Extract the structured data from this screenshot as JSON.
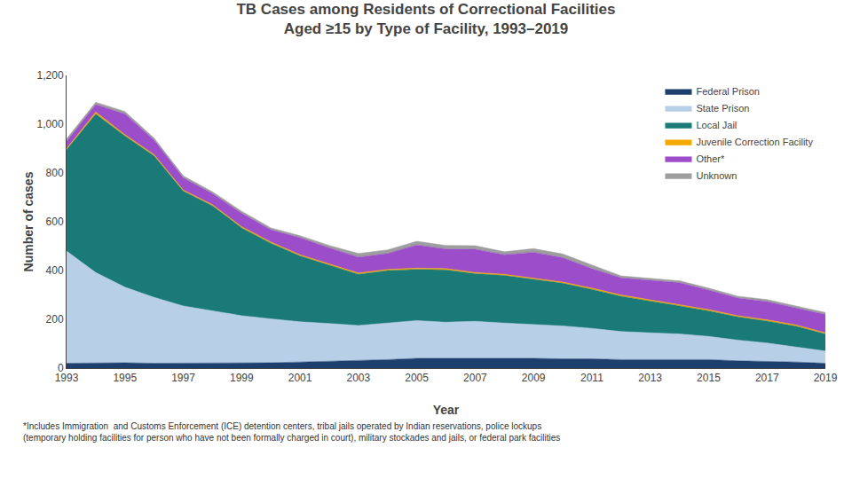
{
  "chart_data": {
    "type": "area",
    "title": "TB Cases among Residents of Correctional Facilities",
    "subtitle": "Aged ≥15 by Type of Facility, 1993–2019",
    "xlabel": "Year",
    "ylabel": "Number of cases",
    "x": [
      1993,
      1994,
      1995,
      1996,
      1997,
      1998,
      1999,
      2000,
      2001,
      2002,
      2003,
      2004,
      2005,
      2006,
      2007,
      2008,
      2009,
      2010,
      2011,
      2012,
      2013,
      2014,
      2015,
      2016,
      2017,
      2018,
      2019
    ],
    "series": [
      {
        "name": "Federal Prison",
        "color": "#1c3f6e",
        "values": [
          20,
          22,
          22,
          20,
          20,
          20,
          20,
          22,
          25,
          28,
          30,
          35,
          40,
          40,
          42,
          40,
          40,
          38,
          38,
          35,
          35,
          35,
          35,
          30,
          28,
          25,
          20
        ]
      },
      {
        "name": "State Prison",
        "color": "#b8cfe8",
        "values": [
          460,
          370,
          310,
          270,
          235,
          215,
          195,
          180,
          165,
          155,
          145,
          150,
          155,
          148,
          150,
          145,
          140,
          135,
          125,
          115,
          110,
          105,
          95,
          85,
          75,
          62,
          50
        ]
      },
      {
        "name": "Local Jail",
        "color": "#1a7a78",
        "values": [
          415,
          650,
          620,
          580,
          470,
          430,
          360,
          310,
          270,
          240,
          210,
          215,
          210,
          215,
          195,
          195,
          185,
          175,
          160,
          145,
          130,
          115,
          105,
          95,
          90,
          85,
          70
        ]
      },
      {
        "name": "Juvenile Correction Facility",
        "color": "#f5a800",
        "values": [
          5,
          8,
          5,
          5,
          5,
          5,
          5,
          5,
          5,
          5,
          5,
          5,
          5,
          5,
          5,
          5,
          5,
          5,
          5,
          5,
          5,
          5,
          5,
          5,
          5,
          5,
          5
        ]
      },
      {
        "name": "Other*",
        "color": "#9b4dca",
        "values": [
          30,
          30,
          85,
          60,
          50,
          45,
          55,
          50,
          70,
          65,
          65,
          65,
          95,
          80,
          95,
          80,
          105,
          100,
          80,
          70,
          80,
          90,
          80,
          72,
          75,
          70,
          75
        ]
      },
      {
        "name": "Unknown",
        "color": "#9e9e9e",
        "values": [
          10,
          10,
          10,
          8,
          8,
          8,
          8,
          8,
          8,
          10,
          15,
          15,
          15,
          15,
          15,
          12,
          15,
          15,
          15,
          8,
          8,
          8,
          8,
          8,
          8,
          8,
          8
        ]
      }
    ],
    "xlim": [
      1993,
      2019
    ],
    "xticks": [
      1993,
      1995,
      1997,
      1999,
      2001,
      2003,
      2005,
      2007,
      2009,
      2011,
      2013,
      2015,
      2017,
      2019
    ],
    "ylim": [
      0,
      1200
    ],
    "yticks": [
      0,
      200,
      400,
      600,
      800,
      {
        "value": 1000,
        "label": "1,000"
      },
      {
        "value": 1200,
        "label": "1,200"
      }
    ],
    "stacked": true,
    "grid": false,
    "legend": "upper right",
    "annotations": [
      "*Includes Immigration  and Customs Enforcement (ICE) detention centers, tribal jails operated by Indian reservations, police lockups\n(temporary holding facilities for person who have not been formally charged in court), military stockades and jails, or federal park facilities"
    ]
  }
}
